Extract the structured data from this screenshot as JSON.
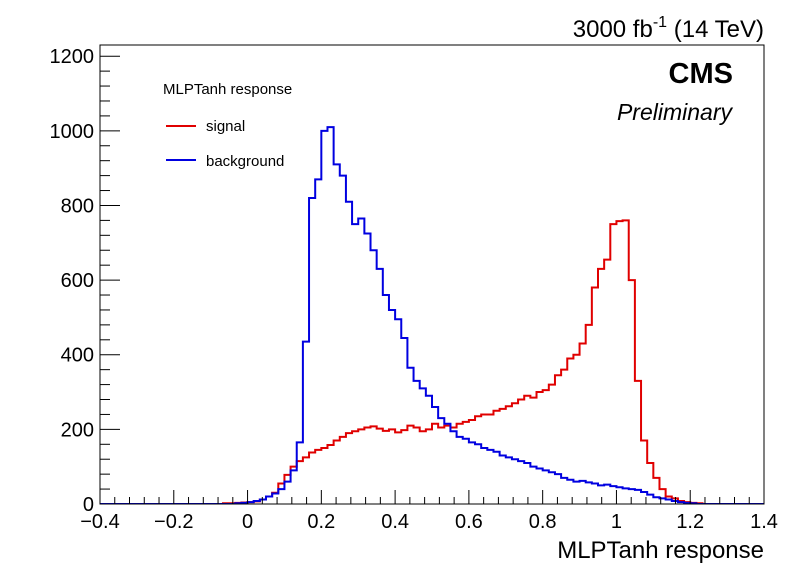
{
  "chart_data": {
    "type": "line",
    "title": "",
    "xlabel": "MLPTanh response",
    "ylabel": "",
    "xlim": [
      -0.4,
      1.4
    ],
    "ylim": [
      0,
      1230
    ],
    "x_ticks": [
      -0.4,
      -0.2,
      0,
      0.2,
      0.4,
      0.6,
      0.8,
      1,
      1.2,
      1.4
    ],
    "x_tick_labels": [
      "−0.4",
      "−0.2",
      "0",
      "0.2",
      "0.4",
      "0.6",
      "0.8",
      "1",
      "1.2",
      "1.4"
    ],
    "y_ticks": [
      0,
      200,
      400,
      600,
      800,
      1000,
      1200
    ],
    "y_tick_labels": [
      "0",
      "200",
      "400",
      "600",
      "800",
      "1000",
      "1200"
    ],
    "grid": false,
    "legend_title": "MLPTanh response",
    "legend_position": "top-left",
    "lumi_label": {
      "base": "3000 fb",
      "exponent": "-1",
      "energy": " (14 TeV)"
    },
    "experiment_label": "CMS",
    "status_label": "Preliminary",
    "histogram_bins": {
      "low": -0.4,
      "high": 1.4,
      "count": 108
    },
    "series": [
      {
        "name": "signal",
        "color": "#e00000",
        "values": [
          0,
          0,
          0,
          0,
          0,
          0,
          0,
          0,
          0,
          0,
          0,
          0,
          0,
          0,
          0,
          0,
          0,
          0,
          0,
          0,
          2,
          2,
          3,
          4,
          5,
          7,
          12,
          20,
          30,
          55,
          78,
          100,
          115,
          125,
          138,
          145,
          150,
          158,
          170,
          180,
          190,
          195,
          200,
          205,
          208,
          202,
          196,
          200,
          192,
          198,
          210,
          205,
          195,
          200,
          215,
          205,
          210,
          205,
          215,
          220,
          225,
          235,
          240,
          240,
          250,
          255,
          262,
          270,
          280,
          290,
          285,
          300,
          305,
          320,
          345,
          360,
          390,
          400,
          430,
          480,
          580,
          630,
          655,
          750,
          758,
          760,
          600,
          330,
          170,
          110,
          70,
          40,
          20,
          15,
          8,
          5,
          3,
          2,
          0,
          0,
          0,
          0,
          0,
          0,
          0,
          0,
          0,
          0
        ]
      },
      {
        "name": "background",
        "color": "#0000e0",
        "values": [
          0,
          0,
          0,
          0,
          0,
          0,
          0,
          0,
          0,
          0,
          0,
          0,
          0,
          0,
          0,
          0,
          0,
          0,
          0,
          0,
          0,
          0,
          2,
          3,
          5,
          8,
          12,
          20,
          28,
          40,
          60,
          90,
          165,
          435,
          820,
          870,
          1000,
          1010,
          910,
          880,
          810,
          750,
          765,
          725,
          680,
          630,
          560,
          520,
          495,
          445,
          365,
          330,
          310,
          290,
          260,
          230,
          215,
          195,
          180,
          175,
          165,
          160,
          150,
          145,
          140,
          130,
          125,
          120,
          115,
          110,
          100,
          95,
          90,
          85,
          80,
          70,
          65,
          60,
          62,
          58,
          55,
          50,
          52,
          48,
          45,
          42,
          40,
          38,
          32,
          25,
          18,
          15,
          12,
          8,
          5,
          3,
          2,
          0,
          0,
          0,
          0,
          0,
          0,
          0,
          0,
          0,
          0,
          0
        ]
      }
    ]
  }
}
